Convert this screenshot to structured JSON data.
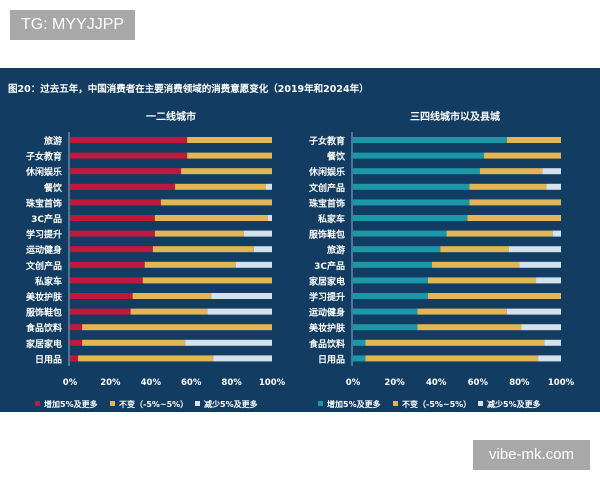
{
  "watermarks": {
    "top_left": "TG: MYYJJPP",
    "bottom_right": "vibe-mk.com"
  },
  "colors": {
    "background": "#123c62",
    "increase_left": "#c2173d",
    "increase_right": "#1b97a8",
    "unchanged": "#e3b654",
    "decrease": "#d3e2ec"
  },
  "title": "图20：过去五年，中国消费者在主要消费领域的消费意愿变化（2019年和2024年）",
  "chart_data": [
    {
      "type": "bar",
      "orientation": "horizontal",
      "stacked": true,
      "title": "一二线城市",
      "categories": [
        "旅游",
        "子女教育",
        "休闲娱乐",
        "餐饮",
        "珠宝首饰",
        "3C产品",
        "学习提升",
        "运动健身",
        "文创产品",
        "私家车",
        "美妆护肤",
        "服饰鞋包",
        "食品饮料",
        "家居家电",
        "日用品"
      ],
      "series": [
        {
          "name": "增加5%及更多",
          "values": [
            58,
            58,
            55,
            52,
            45,
            42,
            42,
            41,
            37,
            36,
            31,
            30,
            6,
            6,
            4
          ]
        },
        {
          "name": "不变（-5%~5%）",
          "values": [
            42,
            42,
            45,
            45,
            55,
            56,
            44,
            50,
            45,
            64,
            39,
            38,
            94,
            51,
            67
          ]
        },
        {
          "name": "减少5%及更多",
          "values": [
            0,
            0,
            0,
            3,
            0,
            2,
            14,
            9,
            18,
            0,
            30,
            32,
            0,
            43,
            29
          ]
        }
      ],
      "xlim": [
        0,
        100
      ],
      "xticks": [
        "0%",
        "20%",
        "40%",
        "60%",
        "80%",
        "100%"
      ],
      "legend": "bottom"
    },
    {
      "type": "bar",
      "orientation": "horizontal",
      "stacked": true,
      "title": "三四线城市以及县城",
      "categories": [
        "子女教育",
        "餐饮",
        "休闲娱乐",
        "文创产品",
        "珠宝首饰",
        "私家车",
        "服饰鞋包",
        "旅游",
        "3C产品",
        "家居家电",
        "学习提升",
        "运动健身",
        "美妆护肤",
        "食品饮料",
        "日用品"
      ],
      "series": [
        {
          "name": "增加5%及更多",
          "values": [
            74,
            63,
            61,
            56,
            56,
            55,
            45,
            42,
            38,
            36,
            36,
            31,
            31,
            6,
            6
          ]
        },
        {
          "name": "不变（-5%~5%）",
          "values": [
            26,
            37,
            30,
            37,
            44,
            45,
            51,
            33,
            42,
            52,
            64,
            43,
            50,
            86,
            83
          ]
        },
        {
          "name": "减少5%及更多",
          "values": [
            0,
            0,
            9,
            7,
            0,
            0,
            4,
            25,
            20,
            12,
            0,
            26,
            19,
            8,
            11
          ]
        }
      ],
      "xlim": [
        0,
        100
      ],
      "xticks": [
        "0%",
        "20%",
        "40%",
        "60%",
        "80%",
        "100%"
      ],
      "legend": "bottom"
    }
  ]
}
